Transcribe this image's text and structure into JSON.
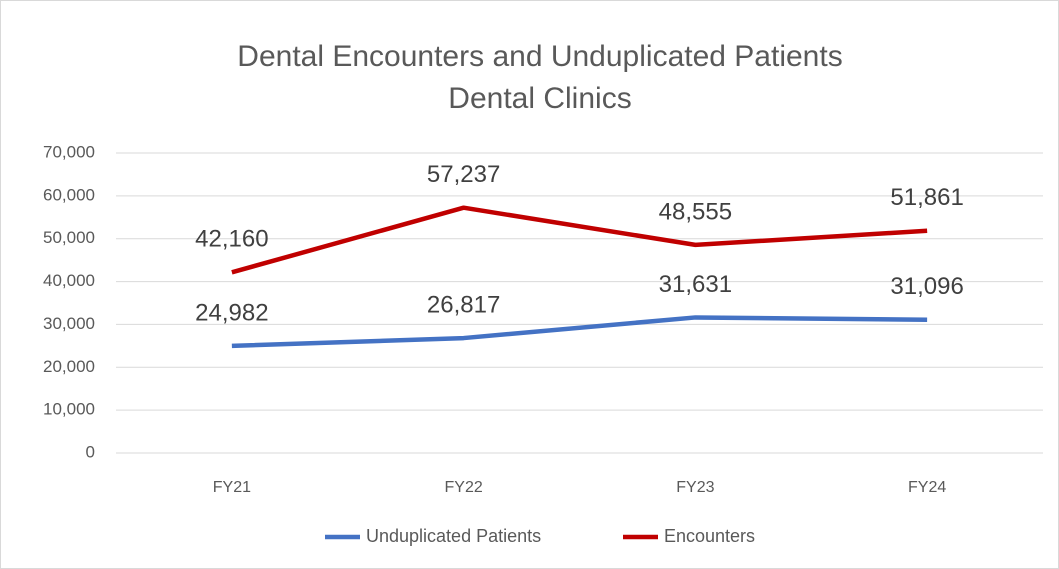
{
  "chart_data": {
    "type": "line",
    "title": "Dental Encounters and Unduplicated Patients",
    "subtitle": "Dental Clinics",
    "categories": [
      "FY21",
      "FY22",
      "FY23",
      "FY24"
    ],
    "series": [
      {
        "name": "Unduplicated Patients",
        "color": "#4472c4",
        "values": [
          24982,
          26817,
          31631,
          31096
        ],
        "value_labels": [
          "24,982",
          "26,817",
          "31,631",
          "31,096"
        ]
      },
      {
        "name": "Encounters",
        "color": "#c00000",
        "values": [
          42160,
          57237,
          48555,
          51861
        ],
        "value_labels": [
          "42,160",
          "57,237",
          "48,555",
          "51,861"
        ]
      }
    ],
    "ylim": [
      0,
      70000
    ],
    "yticks": [
      0,
      {
        "value": 10000,
        "label": "10,000"
      },
      {
        "value": 20000,
        "label": "20,000"
      },
      {
        "value": 30000,
        "label": "30,000"
      },
      {
        "value": 40000,
        "label": "40,000"
      },
      {
        "value": 50000,
        "label": "50,000"
      },
      {
        "value": 60000,
        "label": "60,000"
      },
      {
        "value": 70000,
        "label": "70,000"
      }
    ],
    "grid": true,
    "legend": "bottom"
  }
}
